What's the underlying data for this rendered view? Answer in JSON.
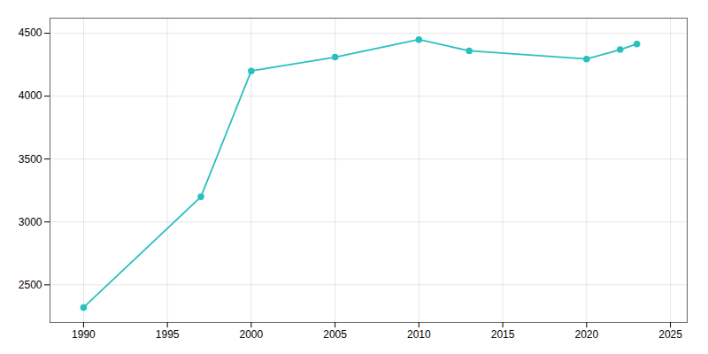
{
  "chart_data": {
    "type": "line",
    "x": [
      1990,
      1997,
      2000,
      2005,
      2010,
      2013,
      2020,
      2022,
      2023
    ],
    "values": [
      2320,
      3200,
      4200,
      4310,
      4450,
      4360,
      4295,
      4370,
      4415
    ],
    "color": "#2ABFBF",
    "marker": "circle",
    "xlim": [
      1988,
      2026
    ],
    "ylim": [
      2200,
      4620
    ],
    "xticks": [
      1990,
      1995,
      2000,
      2005,
      2010,
      2015,
      2020,
      2025
    ],
    "yticks": [
      2500,
      3000,
      3500,
      4000,
      4500
    ],
    "grid": true
  }
}
